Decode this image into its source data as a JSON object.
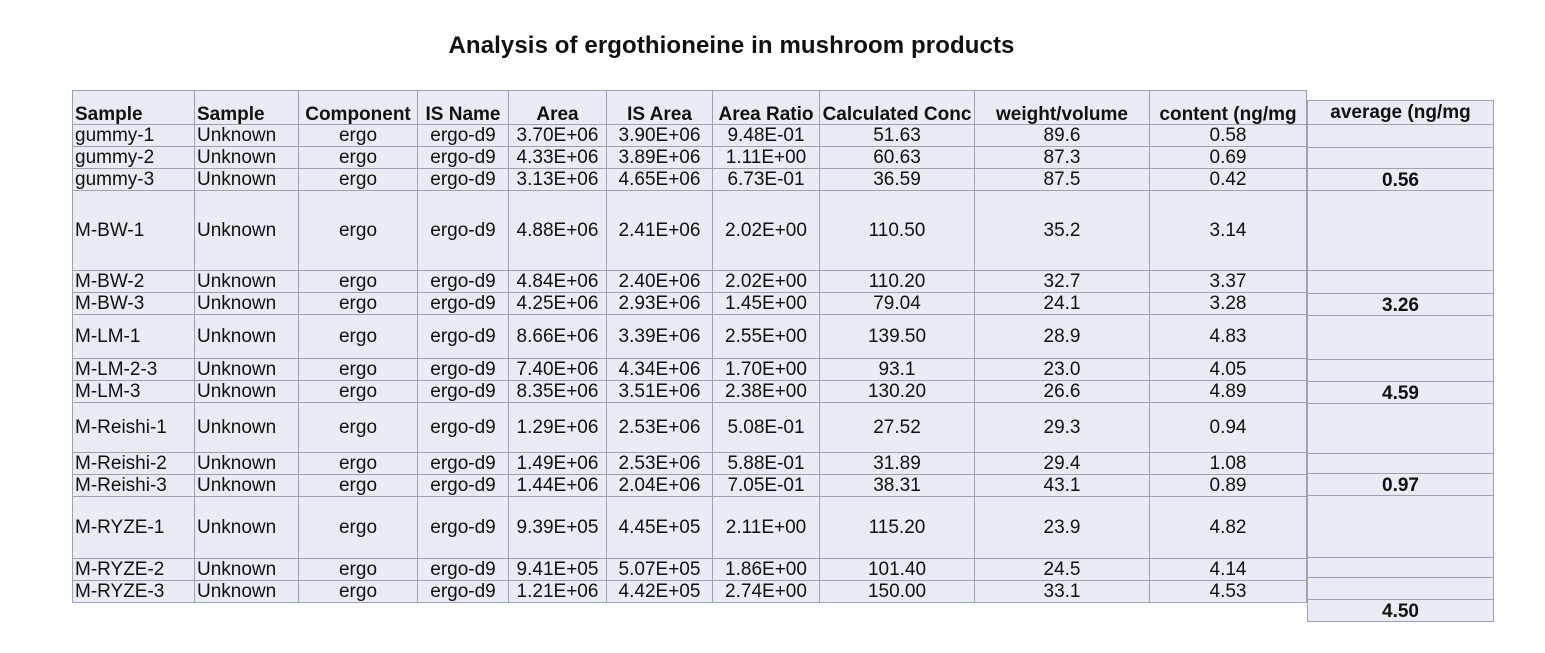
{
  "title": "Analysis of ergothioneine in mushroom products",
  "headers": {
    "sample1": "Sample",
    "sample2": "Sample",
    "component": "Component",
    "is_name": "IS Name",
    "area": "Area",
    "is_area": "IS Area",
    "area_ratio": "Area Ratio",
    "calc_conc": "Calculated Conc",
    "weight_volume": "weight/volume",
    "content": "content (ng/mg",
    "average": "average (ng/mg"
  },
  "rows": [
    {
      "sample": "gummy-1",
      "type": "Unknown",
      "component": "ergo",
      "is_name": "ergo-d9",
      "area": "3.70E+06",
      "is_area": "3.90E+06",
      "ratio": "9.48E-01",
      "conc": "51.63",
      "wv": "89.6",
      "content": "0.58"
    },
    {
      "sample": "gummy-2",
      "type": "Unknown",
      "component": "ergo",
      "is_name": "ergo-d9",
      "area": "4.33E+06",
      "is_area": "3.89E+06",
      "ratio": "1.11E+00",
      "conc": "60.63",
      "wv": "87.3",
      "content": "0.69"
    },
    {
      "sample": "gummy-3",
      "type": "Unknown",
      "component": "ergo",
      "is_name": "ergo-d9",
      "area": "3.13E+06",
      "is_area": "4.65E+06",
      "ratio": "6.73E-01",
      "conc": "36.59",
      "wv": "87.5",
      "content": "0.42"
    },
    {
      "sample": "M-BW-1",
      "type": "Unknown",
      "component": "ergo",
      "is_name": "ergo-d9",
      "area": "4.88E+06",
      "is_area": "2.41E+06",
      "ratio": "2.02E+00",
      "conc": "110.50",
      "wv": "35.2",
      "content": "3.14"
    },
    {
      "sample": "M-BW-2",
      "type": "Unknown",
      "component": "ergo",
      "is_name": "ergo-d9",
      "area": "4.84E+06",
      "is_area": "2.40E+06",
      "ratio": "2.02E+00",
      "conc": "110.20",
      "wv": "32.7",
      "content": "3.37"
    },
    {
      "sample": "M-BW-3",
      "type": "Unknown",
      "component": "ergo",
      "is_name": "ergo-d9",
      "area": "4.25E+06",
      "is_area": "2.93E+06",
      "ratio": "1.45E+00",
      "conc": "79.04",
      "wv": "24.1",
      "content": "3.28"
    },
    {
      "sample": "M-LM-1",
      "type": "Unknown",
      "component": "ergo",
      "is_name": "ergo-d9",
      "area": "8.66E+06",
      "is_area": "3.39E+06",
      "ratio": "2.55E+00",
      "conc": "139.50",
      "wv": "28.9",
      "content": "4.83"
    },
    {
      "sample": "M-LM-2-3",
      "type": "Unknown",
      "component": "ergo",
      "is_name": "ergo-d9",
      "area": "7.40E+06",
      "is_area": "4.34E+06",
      "ratio": "1.70E+00",
      "conc": "93.1",
      "wv": "23.0",
      "content": "4.05"
    },
    {
      "sample": "M-LM-3",
      "type": "Unknown",
      "component": "ergo",
      "is_name": "ergo-d9",
      "area": "8.35E+06",
      "is_area": "3.51E+06",
      "ratio": "2.38E+00",
      "conc": "130.20",
      "wv": "26.6",
      "content": "4.89"
    },
    {
      "sample": "M-Reishi-1",
      "type": "Unknown",
      "component": "ergo",
      "is_name": "ergo-d9",
      "area": "1.29E+06",
      "is_area": "2.53E+06",
      "ratio": "5.08E-01",
      "conc": "27.52",
      "wv": "29.3",
      "content": "0.94"
    },
    {
      "sample": "M-Reishi-2",
      "type": "Unknown",
      "component": "ergo",
      "is_name": "ergo-d9",
      "area": "1.49E+06",
      "is_area": "2.53E+06",
      "ratio": "5.88E-01",
      "conc": "31.89",
      "wv": "29.4",
      "content": "1.08"
    },
    {
      "sample": "M-Reishi-3",
      "type": "Unknown",
      "component": "ergo",
      "is_name": "ergo-d9",
      "area": "1.44E+06",
      "is_area": "2.04E+06",
      "ratio": "7.05E-01",
      "conc": "38.31",
      "wv": "43.1",
      "content": "0.89"
    },
    {
      "sample": "M-RYZE-1",
      "type": "Unknown",
      "component": "ergo",
      "is_name": "ergo-d9",
      "area": "9.39E+05",
      "is_area": "4.45E+05",
      "ratio": "2.11E+00",
      "conc": "115.20",
      "wv": "23.9",
      "content": "4.82"
    },
    {
      "sample": "M-RYZE-2",
      "type": "Unknown",
      "component": "ergo",
      "is_name": "ergo-d9",
      "area": "9.41E+05",
      "is_area": "5.07E+05",
      "ratio": "1.86E+00",
      "conc": "101.40",
      "wv": "24.5",
      "content": "4.14"
    },
    {
      "sample": "M-RYZE-3",
      "type": "Unknown",
      "component": "ergo",
      "is_name": "ergo-d9",
      "area": "1.21E+06",
      "is_area": "4.42E+05",
      "ratio": "2.74E+00",
      "conc": "150.00",
      "wv": "33.1",
      "content": "4.53"
    }
  ],
  "averages": [
    "0.56",
    "3.26",
    "4.59",
    "0.97",
    "4.50"
  ]
}
